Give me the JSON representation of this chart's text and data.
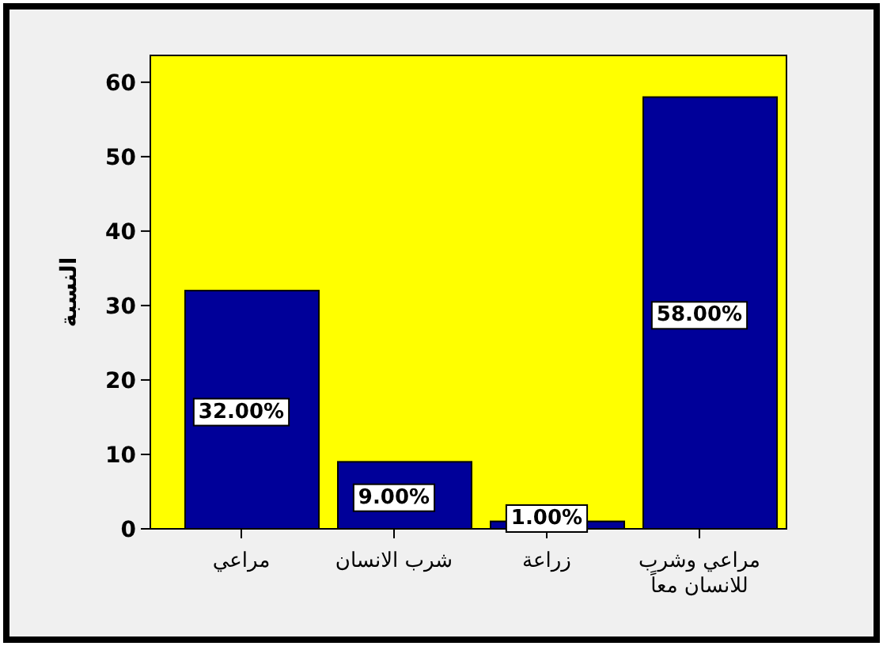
{
  "chart_data": {
    "type": "bar",
    "ylabel": "النسبة",
    "categories": [
      "مراعي",
      "شرب الانسان",
      "زراعة",
      "مراعي وشرب للانسان معاً"
    ],
    "values": [
      32,
      9,
      1,
      58
    ],
    "value_labels": [
      "32.00%",
      "9.00%",
      "1.00%",
      "58.00%"
    ],
    "color": "#000099",
    "ylim": [
      0,
      63.6
    ],
    "yticks": [
      0,
      10,
      20,
      30,
      40,
      50,
      60
    ],
    "grid": false
  }
}
